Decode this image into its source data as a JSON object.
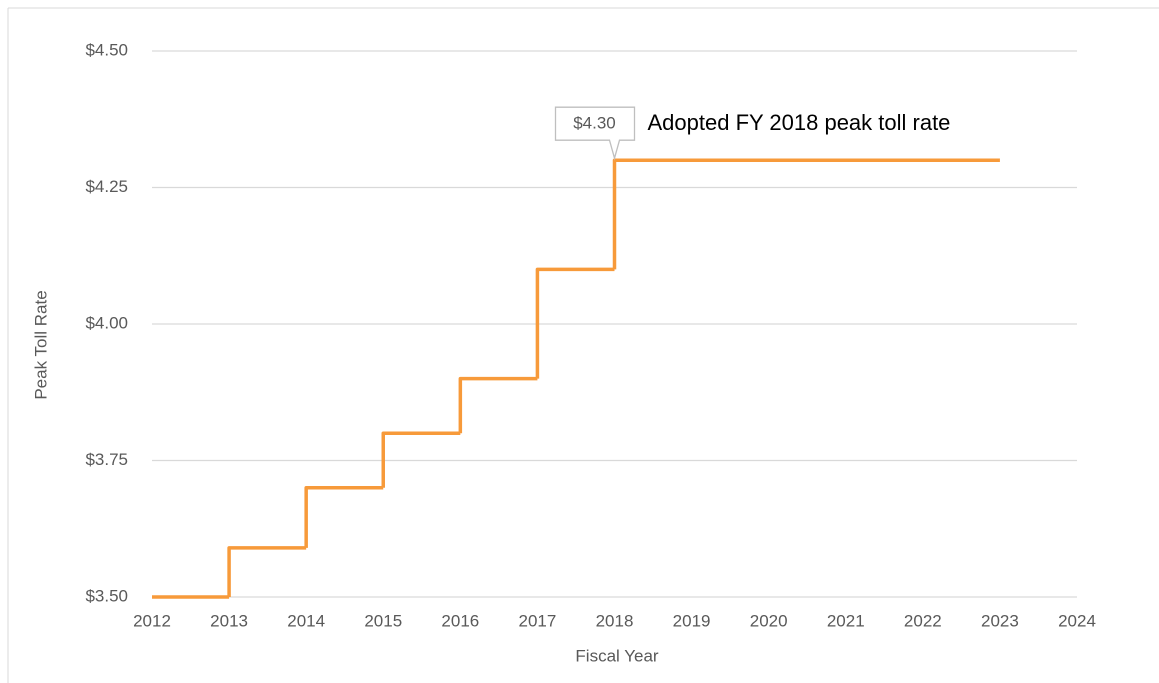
{
  "chart_data": {
    "type": "step",
    "x_label": "Fiscal Year",
    "y_label": "Peak Toll Rate",
    "x": [
      2012,
      2013,
      2014,
      2015,
      2016,
      2017,
      2018,
      2023
    ],
    "values": [
      3.5,
      3.59,
      3.7,
      3.8,
      3.9,
      4.1,
      4.3,
      4.3
    ],
    "value_labels": [
      null,
      null,
      null,
      null,
      null,
      null,
      "$4.30",
      null
    ],
    "annotation": "Adopted FY 2018 peak toll rate",
    "color": "#f79a3a",
    "xlim": [
      2012,
      2024
    ],
    "xticks": [
      2012,
      2013,
      2014,
      2015,
      2016,
      2017,
      2018,
      2019,
      2020,
      2021,
      2022,
      2023,
      2024
    ],
    "ylim": [
      3.5,
      4.5
    ],
    "yticks": [
      {
        "value": 3.5,
        "label": "$3.50"
      },
      {
        "value": 3.75,
        "label": "$3.75"
      },
      {
        "value": 4.0,
        "label": "$4.00"
      },
      {
        "value": 4.25,
        "label": "$4.25"
      },
      {
        "value": 4.5,
        "label": "$4.50"
      }
    ],
    "grid": true
  }
}
